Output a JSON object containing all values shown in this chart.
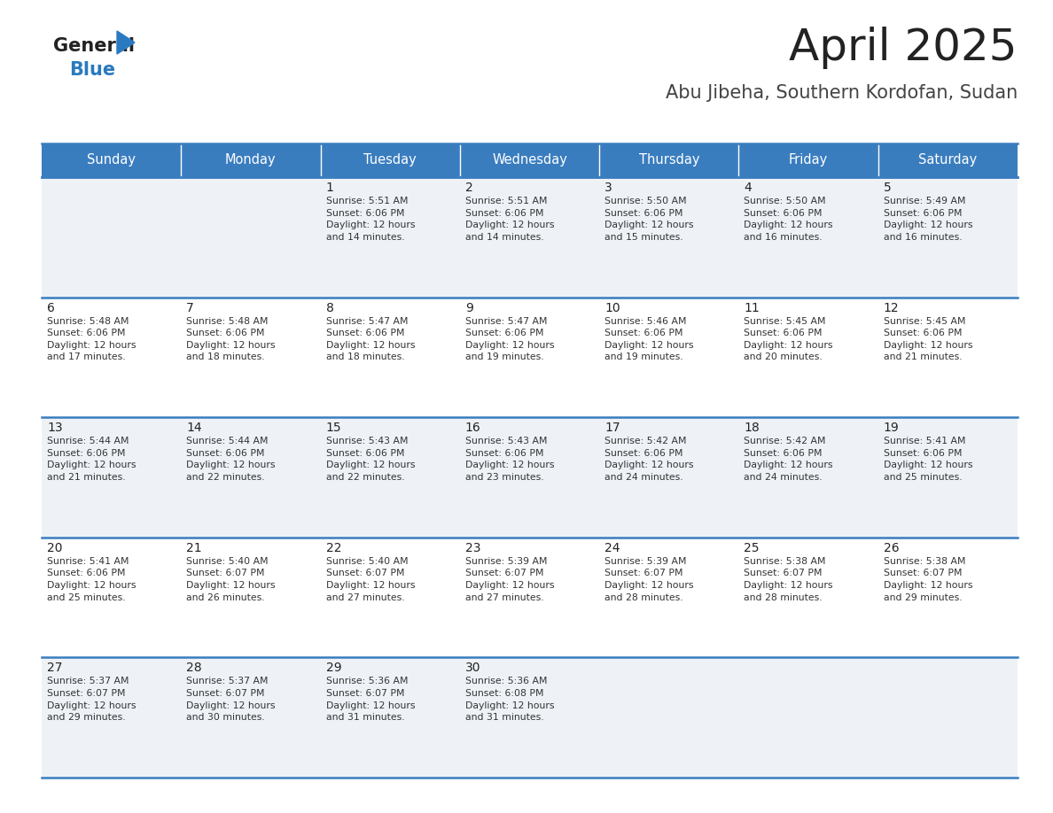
{
  "title": "April 2025",
  "subtitle": "Abu Jibeha, Southern Kordofan, Sudan",
  "header_color": "#3a7dbf",
  "header_text_color": "#ffffff",
  "row_bg_odd": "#eef2f7",
  "row_bg_even": "#ffffff",
  "border_color": "#3a7dbf",
  "text_color": "#333333",
  "day_number_color": "#222222",
  "day_names": [
    "Sunday",
    "Monday",
    "Tuesday",
    "Wednesday",
    "Thursday",
    "Friday",
    "Saturday"
  ],
  "weeks": [
    [
      {
        "day": "",
        "info": ""
      },
      {
        "day": "",
        "info": ""
      },
      {
        "day": "1",
        "info": "Sunrise: 5:51 AM\nSunset: 6:06 PM\nDaylight: 12 hours\nand 14 minutes."
      },
      {
        "day": "2",
        "info": "Sunrise: 5:51 AM\nSunset: 6:06 PM\nDaylight: 12 hours\nand 14 minutes."
      },
      {
        "day": "3",
        "info": "Sunrise: 5:50 AM\nSunset: 6:06 PM\nDaylight: 12 hours\nand 15 minutes."
      },
      {
        "day": "4",
        "info": "Sunrise: 5:50 AM\nSunset: 6:06 PM\nDaylight: 12 hours\nand 16 minutes."
      },
      {
        "day": "5",
        "info": "Sunrise: 5:49 AM\nSunset: 6:06 PM\nDaylight: 12 hours\nand 16 minutes."
      }
    ],
    [
      {
        "day": "6",
        "info": "Sunrise: 5:48 AM\nSunset: 6:06 PM\nDaylight: 12 hours\nand 17 minutes."
      },
      {
        "day": "7",
        "info": "Sunrise: 5:48 AM\nSunset: 6:06 PM\nDaylight: 12 hours\nand 18 minutes."
      },
      {
        "day": "8",
        "info": "Sunrise: 5:47 AM\nSunset: 6:06 PM\nDaylight: 12 hours\nand 18 minutes."
      },
      {
        "day": "9",
        "info": "Sunrise: 5:47 AM\nSunset: 6:06 PM\nDaylight: 12 hours\nand 19 minutes."
      },
      {
        "day": "10",
        "info": "Sunrise: 5:46 AM\nSunset: 6:06 PM\nDaylight: 12 hours\nand 19 minutes."
      },
      {
        "day": "11",
        "info": "Sunrise: 5:45 AM\nSunset: 6:06 PM\nDaylight: 12 hours\nand 20 minutes."
      },
      {
        "day": "12",
        "info": "Sunrise: 5:45 AM\nSunset: 6:06 PM\nDaylight: 12 hours\nand 21 minutes."
      }
    ],
    [
      {
        "day": "13",
        "info": "Sunrise: 5:44 AM\nSunset: 6:06 PM\nDaylight: 12 hours\nand 21 minutes."
      },
      {
        "day": "14",
        "info": "Sunrise: 5:44 AM\nSunset: 6:06 PM\nDaylight: 12 hours\nand 22 minutes."
      },
      {
        "day": "15",
        "info": "Sunrise: 5:43 AM\nSunset: 6:06 PM\nDaylight: 12 hours\nand 22 minutes."
      },
      {
        "day": "16",
        "info": "Sunrise: 5:43 AM\nSunset: 6:06 PM\nDaylight: 12 hours\nand 23 minutes."
      },
      {
        "day": "17",
        "info": "Sunrise: 5:42 AM\nSunset: 6:06 PM\nDaylight: 12 hours\nand 24 minutes."
      },
      {
        "day": "18",
        "info": "Sunrise: 5:42 AM\nSunset: 6:06 PM\nDaylight: 12 hours\nand 24 minutes."
      },
      {
        "day": "19",
        "info": "Sunrise: 5:41 AM\nSunset: 6:06 PM\nDaylight: 12 hours\nand 25 minutes."
      }
    ],
    [
      {
        "day": "20",
        "info": "Sunrise: 5:41 AM\nSunset: 6:06 PM\nDaylight: 12 hours\nand 25 minutes."
      },
      {
        "day": "21",
        "info": "Sunrise: 5:40 AM\nSunset: 6:07 PM\nDaylight: 12 hours\nand 26 minutes."
      },
      {
        "day": "22",
        "info": "Sunrise: 5:40 AM\nSunset: 6:07 PM\nDaylight: 12 hours\nand 27 minutes."
      },
      {
        "day": "23",
        "info": "Sunrise: 5:39 AM\nSunset: 6:07 PM\nDaylight: 12 hours\nand 27 minutes."
      },
      {
        "day": "24",
        "info": "Sunrise: 5:39 AM\nSunset: 6:07 PM\nDaylight: 12 hours\nand 28 minutes."
      },
      {
        "day": "25",
        "info": "Sunrise: 5:38 AM\nSunset: 6:07 PM\nDaylight: 12 hours\nand 28 minutes."
      },
      {
        "day": "26",
        "info": "Sunrise: 5:38 AM\nSunset: 6:07 PM\nDaylight: 12 hours\nand 29 minutes."
      }
    ],
    [
      {
        "day": "27",
        "info": "Sunrise: 5:37 AM\nSunset: 6:07 PM\nDaylight: 12 hours\nand 29 minutes."
      },
      {
        "day": "28",
        "info": "Sunrise: 5:37 AM\nSunset: 6:07 PM\nDaylight: 12 hours\nand 30 minutes."
      },
      {
        "day": "29",
        "info": "Sunrise: 5:36 AM\nSunset: 6:07 PM\nDaylight: 12 hours\nand 31 minutes."
      },
      {
        "day": "30",
        "info": "Sunrise: 5:36 AM\nSunset: 6:08 PM\nDaylight: 12 hours\nand 31 minutes."
      },
      {
        "day": "",
        "info": ""
      },
      {
        "day": "",
        "info": ""
      },
      {
        "day": "",
        "info": ""
      }
    ]
  ],
  "logo_general_color": "#222222",
  "logo_blue_color": "#2a7abf",
  "title_color": "#222222",
  "subtitle_color": "#444444",
  "title_fontsize": 36,
  "subtitle_fontsize": 15,
  "header_fontsize": 10.5,
  "day_num_fontsize": 10,
  "info_fontsize": 7.8
}
